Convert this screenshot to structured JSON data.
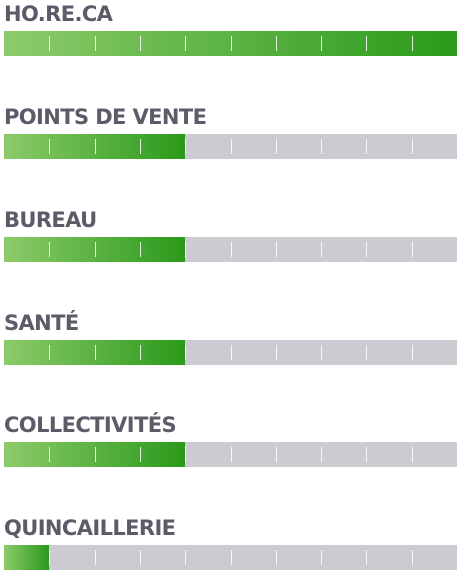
{
  "colors": {
    "label": "#5e5a68",
    "track": "#cccbd2",
    "fill_start": "#8ccb6b",
    "fill_end": "#2a9a1a"
  },
  "segments": 10,
  "bars": [
    {
      "label": "HO.RE.CA",
      "level": 10
    },
    {
      "label": "POINTS DE VENTE",
      "level": 4
    },
    {
      "label": "BUREAU",
      "level": 4
    },
    {
      "label": "SANTÉ",
      "level": 4
    },
    {
      "label": "COLLECTIVITÉS",
      "level": 4
    },
    {
      "label": "QUINCAILLERIE",
      "level": 1
    }
  ]
}
